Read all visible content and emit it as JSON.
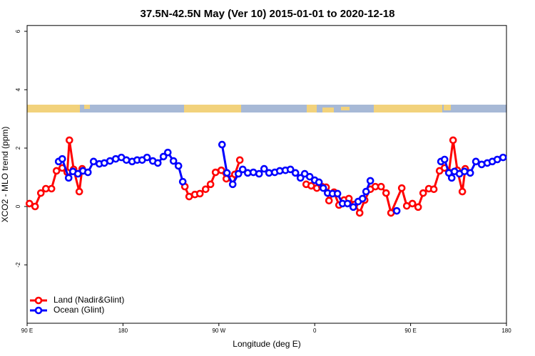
{
  "chart_data": {
    "type": "line",
    "title": "37.5N-42.5N May (Ver 10)   2015-01-01 to 2020-12-18",
    "x_label": "Longitude (deg E)",
    "y_label": "XCO2 - MLO trend (ppm)",
    "xlim": [
      -270,
      180
    ],
    "xticks": [
      {
        "value": -270,
        "label": "90 E"
      },
      {
        "value": -180,
        "label": "180"
      },
      {
        "value": -90,
        "label": "90 W"
      },
      0,
      {
        "value": 90,
        "label": "90 E"
      },
      {
        "value": 180,
        "label": "180"
      }
    ],
    "ylim": [
      -4,
      6.2
    ],
    "yticks": [
      -2,
      0,
      2,
      4,
      6
    ],
    "legend": "bottom-left",
    "series": [
      {
        "name": "Land (Nadir&Glint)",
        "color": "#ff0000",
        "x": [
          -267.8,
          -262.5,
          -257.1,
          -252.4,
          -247.1,
          -242.4,
          -237.0,
          -232.3,
          -230.3,
          -226.3,
          -221.0,
          -218.3,
          null,
          -121.9,
          -117.9,
          -112.5,
          -107.8,
          -102.4,
          -97.8,
          -93.1,
          -87.7,
          -83.0,
          -77.7,
          -75.0,
          -70.3,
          null,
          -8.0,
          -3.3,
          2.0,
          6.7,
          10.7,
          13.4,
          18.1,
          22.8,
          27.5,
          32.1,
          37.5,
          42.2,
          46.9,
          52.2,
          56.9,
          62.3,
          67.0,
          71.6,
          81.7,
          86.4,
          91.7,
          97.1,
          101.8,
          107.1,
          111.8,
          117.2,
          121.9,
          125.9,
          129.9,
          133.9,
          138.6,
          141.3
        ],
        "values": [
          0.1,
          0,
          0.46,
          0.61,
          0.61,
          1.22,
          1.32,
          1.17,
          2.27,
          1.27,
          0.51,
          1.29,
          null,
          0.68,
          0.34,
          0.41,
          0.44,
          0.59,
          0.76,
          1.17,
          1.24,
          0.95,
          0.95,
          1.1,
          1.59,
          null,
          0.76,
          0.71,
          0.63,
          0.68,
          0.66,
          0.2,
          0.49,
          0.05,
          0.22,
          0.27,
          0.07,
          -0.22,
          0.22,
          0.59,
          0.68,
          0.68,
          0.46,
          -0.22,
          0.63,
          0.02,
          0.1,
          -0.02,
          0.46,
          0.61,
          0.59,
          1.22,
          1.32,
          1.17,
          2.27,
          1.24,
          0.51,
          1.29
        ]
      },
      {
        "name": "Ocean (Glint)",
        "color": "#0000ff",
        "x": [
          -240.4,
          -237.0,
          -231.0,
          -227.0,
          -222.3,
          -217.6,
          -212.9,
          -207.6,
          -202.2,
          -197.5,
          -192.2,
          -186.8,
          -181.5,
          -176.8,
          -171.4,
          -166.7,
          -162.0,
          -157.4,
          -152.0,
          -147.3,
          -142.0,
          -137.9,
          -132.6,
          -127.9,
          -123.9,
          null,
          -87.0,
          -82.4,
          -77.0,
          -71.6,
          -67.6,
          -62.9,
          -57.6,
          -52.2,
          -47.5,
          -42.9,
          -37.5,
          -32.8,
          -27.5,
          -22.8,
          -18.1,
          -13.4,
          -9.4,
          -4.7,
          0,
          4.0,
          8.0,
          12.1,
          16.7,
          21.4,
          26.1,
          30.8,
          36.2,
          40.8,
          44.9,
          48.2,
          52.2,
          null,
          77.0,
          null,
          118.5,
          121.9,
          125.9,
          128.6,
          131.2,
          135.9,
          140.6,
          146.0,
          151.3,
          156.7,
          162.0,
          166.7,
          171.4,
          176.8
        ],
        "values": [
          1.54,
          1.63,
          0.98,
          1.2,
          1.12,
          1.22,
          1.17,
          1.54,
          1.46,
          1.49,
          1.56,
          1.63,
          1.68,
          1.59,
          1.54,
          1.59,
          1.59,
          1.68,
          1.56,
          1.49,
          1.71,
          1.85,
          1.56,
          1.39,
          0.85,
          null,
          2.12,
          1.15,
          0.76,
          1.12,
          1.27,
          1.15,
          1.17,
          1.12,
          1.29,
          1.15,
          1.17,
          1.22,
          1.24,
          1.27,
          1.15,
          0.98,
          1.12,
          1.02,
          0.9,
          0.83,
          0.63,
          0.46,
          0.44,
          0.44,
          0.1,
          0.1,
          -0.02,
          0.17,
          0.27,
          0.51,
          0.88,
          null,
          -0.15,
          null,
          1.54,
          1.61,
          1.15,
          0.98,
          1.2,
          1.12,
          1.2,
          1.15,
          1.54,
          1.44,
          1.49,
          1.54,
          1.61,
          1.68
        ]
      }
    ]
  }
}
